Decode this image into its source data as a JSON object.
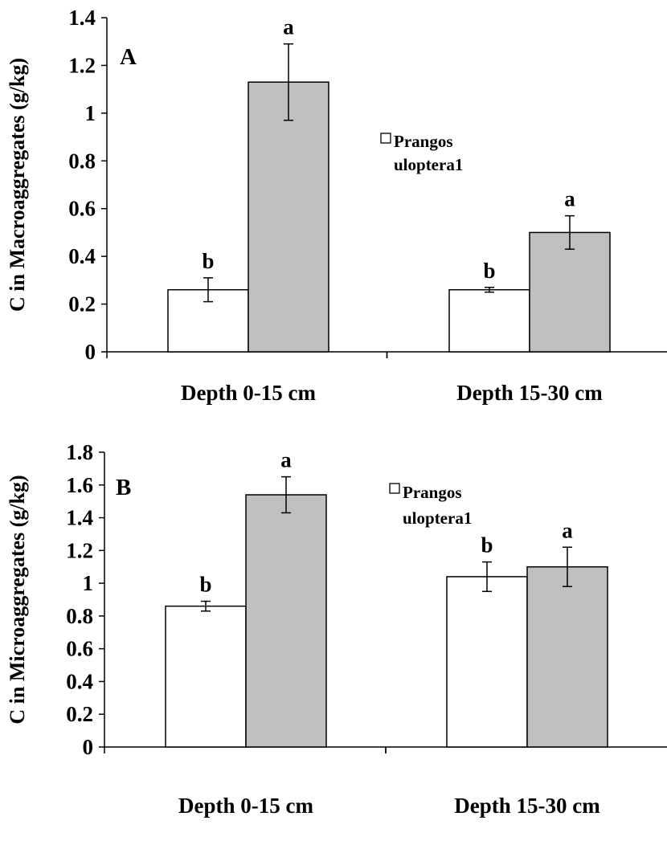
{
  "chart_data": [
    {
      "type": "bar",
      "panel_label": "A",
      "ylabel": "C in Macroaggregates  (g/kg)",
      "xlabel": "",
      "categories": [
        "Depth 0-15 cm",
        "Depth 15-30 cm"
      ],
      "ylim": [
        0,
        1.4
      ],
      "yticks": [
        0,
        0.2,
        0.4,
        0.6,
        0.8,
        1,
        1.2,
        1.4
      ],
      "ytick_labels": [
        "0",
        "0.2",
        "0.4",
        "0.6",
        "0.8",
        "1",
        "1.2",
        "1.4"
      ],
      "grid": false,
      "legend_position": "center-right",
      "legend_label": "Prangos uloptera1",
      "series": [
        {
          "name": "Prangos uloptera1",
          "color": "#ffffff",
          "values": [
            0.26,
            0.26
          ],
          "errors": [
            0.05,
            0.01
          ],
          "labels": [
            "b",
            "b"
          ]
        },
        {
          "color": "#c0c0c0",
          "values": [
            1.13,
            0.5
          ],
          "errors": [
            0.16,
            0.07
          ],
          "labels": [
            "a",
            "a"
          ]
        }
      ]
    },
    {
      "type": "bar",
      "panel_label": "B",
      "ylabel": "C in Microaggregates (g/kg)",
      "xlabel": "",
      "categories": [
        "Depth 0-15 cm",
        "Depth 15-30 cm"
      ],
      "ylim": [
        0,
        1.8
      ],
      "yticks": [
        0,
        0.2,
        0.4,
        0.6,
        0.8,
        1,
        1.2,
        1.4,
        1.6,
        1.8
      ],
      "ytick_labels": [
        "0",
        "0.2",
        "0.4",
        "0.6",
        "0.8",
        "1",
        "1.2",
        "1.4",
        "1.6",
        "1.8"
      ],
      "grid": false,
      "legend_position": "center-right",
      "legend_label": "Prangos uloptera1",
      "series": [
        {
          "name": "Prangos uloptera1",
          "color": "#ffffff",
          "values": [
            0.86,
            1.04
          ],
          "errors": [
            0.03,
            0.09
          ],
          "labels": [
            "b",
            "b"
          ]
        },
        {
          "color": "#c0c0c0",
          "values": [
            1.54,
            1.1
          ],
          "errors": [
            0.11,
            0.12
          ],
          "labels": [
            "a",
            "a"
          ]
        }
      ]
    }
  ]
}
